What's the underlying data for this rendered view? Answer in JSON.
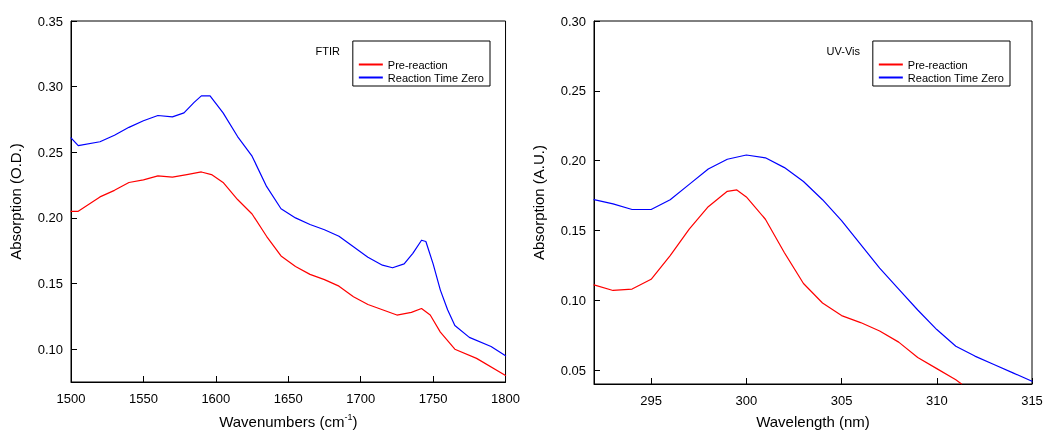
{
  "chart_data": [
    {
      "type": "line",
      "xlabel": "Wavenumbers (cm$^{-1}$)",
      "ylabel": "Absorption (O.D.)",
      "legend_title": "FTIR",
      "legend": "top right",
      "grid": false,
      "marker": "none",
      "line_style": "solid",
      "xlim": [
        1500,
        1800
      ],
      "xticks": [
        1500,
        1550,
        1600,
        1650,
        1700,
        1750,
        1800
      ],
      "ylim": [
        0.075,
        0.35
      ],
      "yticks": [
        {
          "value": 0.1,
          "label": "0.10"
        },
        0.15,
        {
          "value": 0.2,
          "label": "0.20"
        },
        0.25,
        {
          "value": 0.3,
          "label": "0.30"
        },
        0.35
      ],
      "series": [
        {
          "name": "Pre-reaction",
          "color": "#ff0000",
          "x": [
            1500,
            1505,
            1520,
            1530,
            1540,
            1550,
            1560,
            1570,
            1580,
            1590,
            1597,
            1605,
            1615,
            1625,
            1635,
            1645,
            1655,
            1665,
            1675,
            1685,
            1695,
            1705,
            1715,
            1725,
            1735,
            1742,
            1748,
            1755,
            1765,
            1780,
            1800
          ],
          "values": [
            0.205,
            0.205,
            0.216,
            0.221,
            0.227,
            0.229,
            0.232,
            0.231,
            0.233,
            0.235,
            0.233,
            0.227,
            0.214,
            0.203,
            0.186,
            0.171,
            0.163,
            0.157,
            0.153,
            0.148,
            0.14,
            0.134,
            0.13,
            0.126,
            0.128,
            0.131,
            0.126,
            0.113,
            0.1,
            0.093,
            0.08
          ]
        },
        {
          "name": "Reaction Time Zero",
          "color": "#0000ff",
          "x": [
            1500,
            1505,
            1520,
            1530,
            1540,
            1550,
            1560,
            1570,
            1578,
            1585,
            1590,
            1596,
            1605,
            1615,
            1625,
            1635,
            1645,
            1655,
            1665,
            1675,
            1685,
            1695,
            1705,
            1715,
            1722,
            1730,
            1736,
            1742,
            1745,
            1750,
            1755,
            1760,
            1765,
            1775,
            1790,
            1800
          ],
          "values": [
            0.261,
            0.255,
            0.258,
            0.263,
            0.269,
            0.274,
            0.278,
            0.277,
            0.28,
            0.288,
            0.293,
            0.293,
            0.28,
            0.262,
            0.247,
            0.224,
            0.207,
            0.2,
            0.195,
            0.191,
            0.186,
            0.178,
            0.17,
            0.164,
            0.162,
            0.165,
            0.173,
            0.183,
            0.182,
            0.165,
            0.145,
            0.13,
            0.118,
            0.109,
            0.102,
            0.095
          ]
        }
      ]
    },
    {
      "type": "line",
      "xlabel": "Wavelength (nm)",
      "ylabel": "Absorption (A.U.)",
      "legend_title": "UV-Vis",
      "legend": "top right",
      "grid": false,
      "marker": "none",
      "line_style": "solid",
      "xlim": [
        292,
        315
      ],
      "xticks": [
        295,
        300,
        305,
        310,
        315
      ],
      "ylim": [
        0.04,
        0.3
      ],
      "yticks": [
        0.05,
        {
          "value": 0.1,
          "label": "0.10"
        },
        0.15,
        {
          "value": 0.2,
          "label": "0.20"
        },
        0.25,
        {
          "value": 0.3,
          "label": "0.30"
        }
      ],
      "series": [
        {
          "name": "Pre-reaction",
          "color": "#ff0000",
          "x": [
            292,
            293,
            294,
            295,
            296,
            297,
            298,
            299,
            299.5,
            300,
            301,
            302,
            303,
            304,
            305,
            306,
            307,
            308,
            309,
            310,
            311,
            311.3
          ],
          "values": [
            0.111,
            0.107,
            0.108,
            0.115,
            0.132,
            0.151,
            0.167,
            0.178,
            0.179,
            0.174,
            0.158,
            0.134,
            0.112,
            0.098,
            0.089,
            0.084,
            0.078,
            0.07,
            0.059,
            0.051,
            0.043,
            0.04
          ]
        },
        {
          "name": "Reaction Time Zero",
          "color": "#0000ff",
          "x": [
            292,
            293,
            294,
            295,
            296,
            297,
            298,
            299,
            300,
            301,
            302,
            303,
            304,
            305,
            306,
            307,
            308,
            309,
            310,
            311,
            312,
            313,
            314,
            315
          ],
          "values": [
            0.172,
            0.169,
            0.165,
            0.165,
            0.172,
            0.183,
            0.194,
            0.201,
            0.204,
            0.202,
            0.195,
            0.185,
            0.172,
            0.157,
            0.14,
            0.123,
            0.108,
            0.093,
            0.079,
            0.067,
            0.06,
            0.054,
            0.048,
            0.042
          ]
        }
      ]
    }
  ]
}
